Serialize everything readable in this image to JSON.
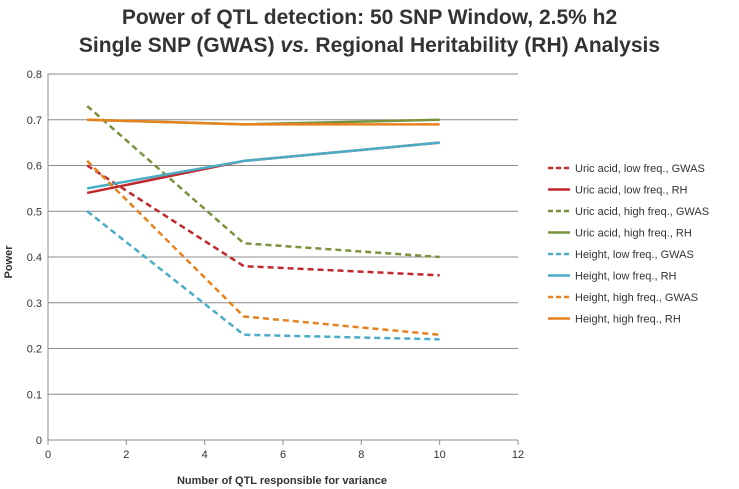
{
  "chart_data": {
    "type": "line",
    "title_line1": "Power of QTL detection: 50 SNP Window, 2.5% h2",
    "title_line2": {
      "before": "Single SNP (GWAS) ",
      "italic": "vs.",
      "after": " Regional Heritability (RH) Analysis"
    },
    "xlabel": "Number of QTL responsible for variance",
    "ylabel": "Power",
    "xlim": [
      0,
      12
    ],
    "ylim": [
      0,
      0.8
    ],
    "x_ticks": [
      0,
      2,
      4,
      6,
      8,
      10,
      12
    ],
    "y_ticks": [
      0,
      0.1,
      0.2,
      0.3,
      0.4,
      0.5,
      0.6,
      0.7,
      0.8
    ],
    "x_tick_labels": [
      "0",
      "2",
      "4",
      "6",
      "8",
      "10",
      "12"
    ],
    "y_tick_labels": [
      "0",
      "0.1",
      "0.2",
      "0.3",
      "0.4",
      "0.5",
      "0.6",
      "0.7",
      "0.8"
    ],
    "grid": "horizontal",
    "legend_position": "right",
    "x": [
      1,
      5,
      10
    ],
    "series": [
      {
        "name": "Uric acid, low freq., GWAS",
        "values": [
          0.6,
          0.38,
          0.36
        ],
        "color": "#C0282D",
        "dashed": true
      },
      {
        "name": "Uric acid, low freq., RH",
        "values": [
          0.54,
          0.61,
          0.65
        ],
        "color": "#C0282D",
        "dashed": false
      },
      {
        "name": "Uric acid, high freq., GWAS",
        "values": [
          0.73,
          0.43,
          0.4
        ],
        "color": "#77933C",
        "dashed": true
      },
      {
        "name": "Uric acid, high freq., RH",
        "values": [
          0.7,
          0.69,
          0.7
        ],
        "color": "#77933C",
        "dashed": false
      },
      {
        "name": "Height, low freq., GWAS",
        "values": [
          0.5,
          0.23,
          0.22
        ],
        "color": "#4BACC6",
        "dashed": true
      },
      {
        "name": "Height, low freq., RH",
        "values": [
          0.55,
          0.61,
          0.65
        ],
        "color": "#4BACC6",
        "dashed": false
      },
      {
        "name": "Height, high freq., GWAS",
        "values": [
          0.61,
          0.27,
          0.23
        ],
        "color": "#E8821E",
        "dashed": true
      },
      {
        "name": "Height, high freq., RH",
        "values": [
          0.7,
          0.69,
          0.69
        ],
        "color": "#E8821E",
        "dashed": false
      }
    ]
  }
}
